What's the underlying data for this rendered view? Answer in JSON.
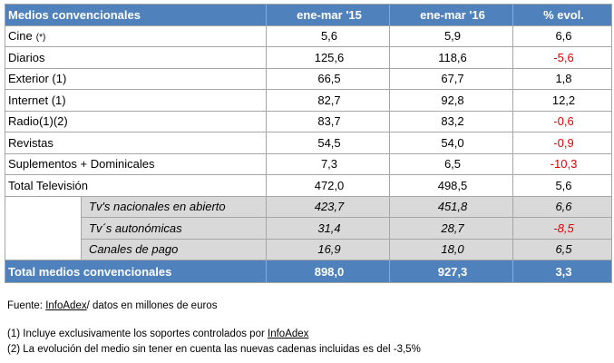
{
  "table": {
    "header": [
      "Medios convencionales",
      "ene-mar '15",
      "ene-mar '16",
      "% evol."
    ],
    "rows": [
      {
        "name": "Cine",
        "mark": "(*)",
        "v15": "5,6",
        "v16": "5,9",
        "evol": "6,6",
        "negative": false
      },
      {
        "name": "Diarios",
        "mark": "",
        "v15": "125,6",
        "v16": "118,6",
        "evol": "-5,6",
        "negative": true
      },
      {
        "name": "Exterior (1)",
        "mark": "",
        "v15": "66,5",
        "v16": "67,7",
        "evol": "1,8",
        "negative": false
      },
      {
        "name": "Internet (1)",
        "mark": "",
        "v15": "82,7",
        "v16": "92,8",
        "evol": "12,2",
        "negative": false
      },
      {
        "name": "Radio(1)(2)",
        "mark": "",
        "v15": "83,7",
        "v16": "83,2",
        "evol": "-0,6",
        "negative": true
      },
      {
        "name": "Revistas",
        "mark": "",
        "v15": "54,5",
        "v16": "54,0",
        "evol": "-0,9",
        "negative": true
      },
      {
        "name": "Suplementos + Dominicales",
        "mark": "",
        "v15": "7,3",
        "v16": "6,5",
        "evol": "-10,3",
        "negative": true
      },
      {
        "name": "Total Televisión",
        "mark": "",
        "v15": "472,0",
        "v16": "498,5",
        "evol": "5,6",
        "negative": false
      }
    ],
    "subrows": [
      {
        "name": "Tv's nacionales en abierto",
        "v15": "423,7",
        "v16": "451,8",
        "evol": "6,6",
        "negative": false
      },
      {
        "name": "Tv´s autonómicas",
        "v15": "31,4",
        "v16": "28,7",
        "evol": "-8,5",
        "negative": true
      },
      {
        "name": "Canales de pago",
        "v15": "16,9",
        "v16": "18,0",
        "evol": "6,5",
        "negative": false
      }
    ],
    "total": {
      "name": "Total medios convencionales",
      "v15": "898,0",
      "v16": "927,3",
      "evol": "3,3"
    }
  },
  "notes": {
    "source_label": "Fuente:",
    "source_link": "InfoAdex",
    "source_rest": "/ datos en millones de euros",
    "note1_text": "(1)  Incluye exclusivamente los soportes controlados por",
    "note1_link": "InfoAdex",
    "note2_text": "(2)  La evolución del medio sin tener en cuenta las nuevas cadenas incluidas es del -3,5%"
  },
  "colors": {
    "header": "#4f81bd",
    "subrow": "#d9d9d9",
    "negative": "#e60000"
  }
}
